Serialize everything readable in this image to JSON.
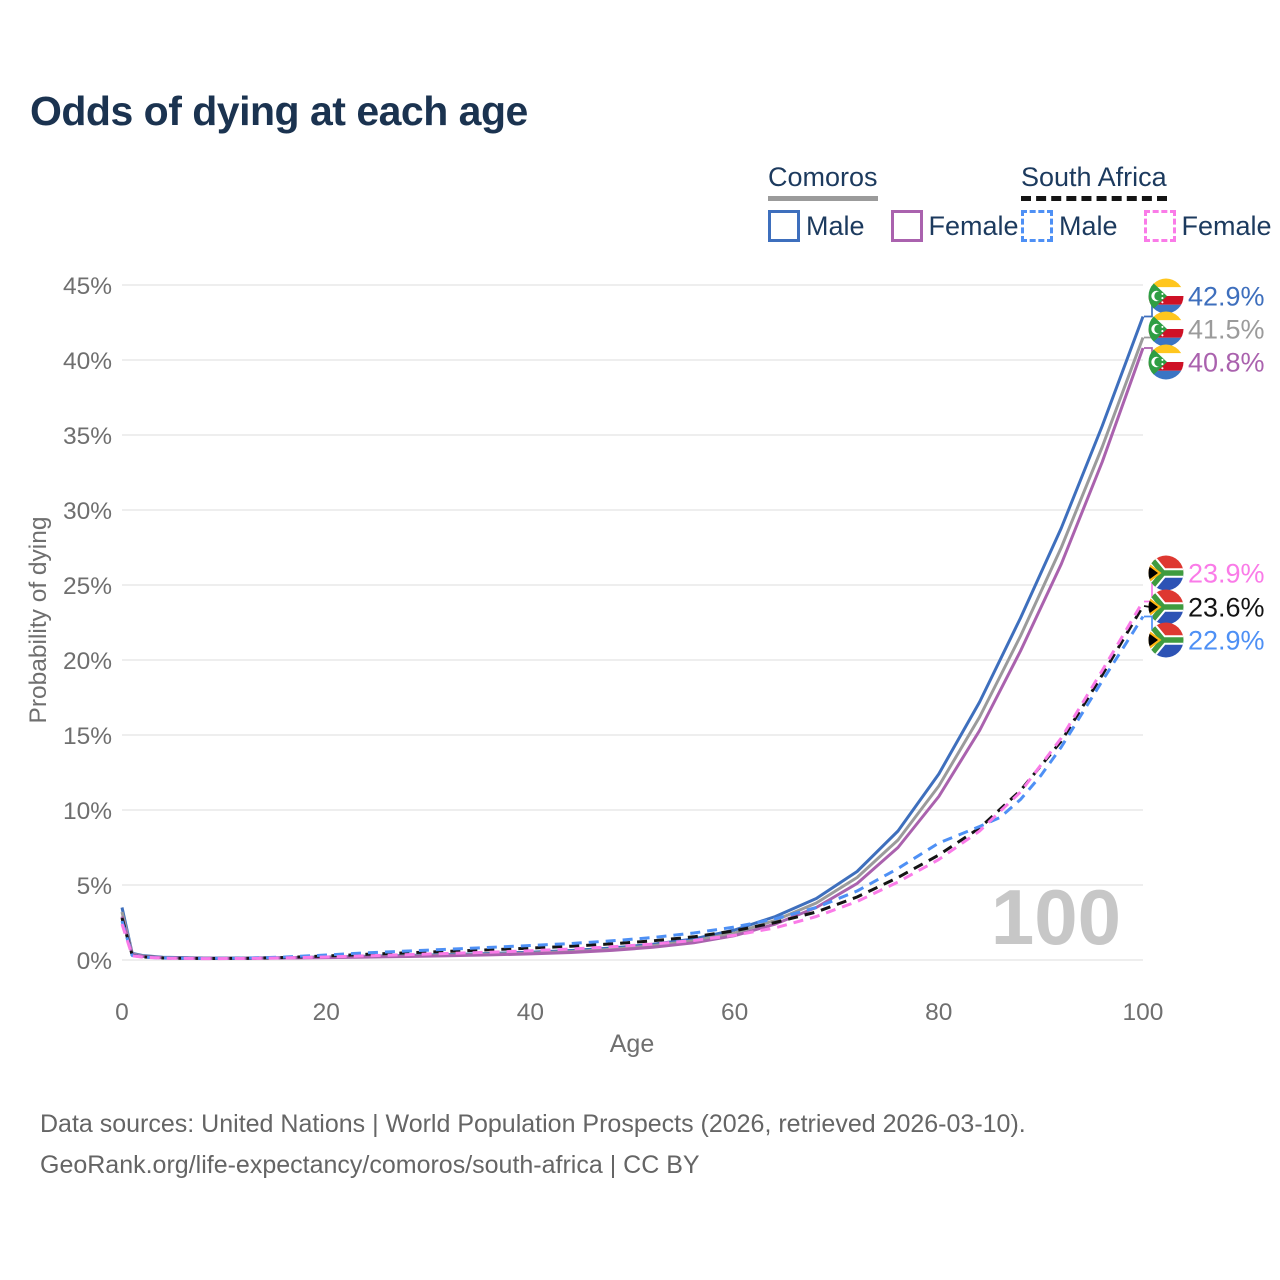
{
  "title": "Odds of dying at each age",
  "legend": {
    "groups": [
      {
        "name": "Comoros",
        "line_style": "solid",
        "line_color": "#9b9b9b",
        "items": [
          {
            "label": "Male",
            "color": "#3E6FBD",
            "dashed": false
          },
          {
            "label": "Female",
            "color": "#AA62AE",
            "dashed": false
          }
        ]
      },
      {
        "name": "South Africa",
        "line_style": "dashed",
        "line_color": "#141414",
        "items": [
          {
            "label": "Male",
            "color": "#4E90F5",
            "dashed": true
          },
          {
            "label": "Female",
            "color": "#FA7BE8",
            "dashed": true
          }
        ]
      }
    ]
  },
  "chart_data": {
    "type": "line",
    "title": "Odds of dying at each age",
    "xlabel": "Age",
    "ylabel": "Probability of dying",
    "xlim": [
      0,
      100
    ],
    "ylim": [
      0,
      45
    ],
    "x_ticks": [
      0,
      20,
      40,
      60,
      80,
      100
    ],
    "y_ticks": [
      0,
      5,
      10,
      15,
      20,
      25,
      30,
      35,
      40,
      45
    ],
    "y_tick_suffix": "%",
    "grid": true,
    "watermark": "100",
    "legend_position": "top-right",
    "series": [
      {
        "name": "Comoros Male",
        "country": "Comoros",
        "sex": "Male",
        "color": "#3E6FBD",
        "dashed": false,
        "end_label": "42.9%",
        "points": [
          [
            0,
            3.5
          ],
          [
            1,
            0.45
          ],
          [
            2,
            0.3
          ],
          [
            4,
            0.18
          ],
          [
            8,
            0.13
          ],
          [
            12,
            0.13
          ],
          [
            16,
            0.16
          ],
          [
            20,
            0.2
          ],
          [
            24,
            0.25
          ],
          [
            28,
            0.3
          ],
          [
            32,
            0.36
          ],
          [
            36,
            0.43
          ],
          [
            40,
            0.52
          ],
          [
            44,
            0.63
          ],
          [
            48,
            0.8
          ],
          [
            52,
            1.05
          ],
          [
            56,
            1.4
          ],
          [
            60,
            2.0
          ],
          [
            64,
            2.9
          ],
          [
            68,
            4.1
          ],
          [
            72,
            5.9
          ],
          [
            76,
            8.6
          ],
          [
            80,
            12.4
          ],
          [
            84,
            17.2
          ],
          [
            88,
            22.8
          ],
          [
            92,
            28.8
          ],
          [
            96,
            35.6
          ],
          [
            100,
            42.9
          ]
        ]
      },
      {
        "name": "Comoros Both sexes",
        "country": "Comoros",
        "sex": "All",
        "color": "#9B9B9B",
        "dashed": false,
        "end_label": "41.5%",
        "points": [
          [
            0,
            3.2
          ],
          [
            1,
            0.4
          ],
          [
            2,
            0.27
          ],
          [
            4,
            0.16
          ],
          [
            8,
            0.12
          ],
          [
            12,
            0.12
          ],
          [
            16,
            0.14
          ],
          [
            20,
            0.18
          ],
          [
            24,
            0.22
          ],
          [
            28,
            0.27
          ],
          [
            32,
            0.32
          ],
          [
            36,
            0.38
          ],
          [
            40,
            0.46
          ],
          [
            44,
            0.56
          ],
          [
            48,
            0.72
          ],
          [
            52,
            0.95
          ],
          [
            56,
            1.28
          ],
          [
            60,
            1.8
          ],
          [
            64,
            2.65
          ],
          [
            68,
            3.8
          ],
          [
            72,
            5.5
          ],
          [
            76,
            8.0
          ],
          [
            80,
            11.6
          ],
          [
            84,
            16.2
          ],
          [
            88,
            21.6
          ],
          [
            92,
            27.5
          ],
          [
            96,
            34.2
          ],
          [
            100,
            41.5
          ]
        ]
      },
      {
        "name": "Comoros Female",
        "country": "Comoros",
        "sex": "Female",
        "color": "#AA62AE",
        "dashed": false,
        "end_label": "40.8%",
        "points": [
          [
            0,
            2.9
          ],
          [
            1,
            0.36
          ],
          [
            2,
            0.24
          ],
          [
            4,
            0.14
          ],
          [
            8,
            0.11
          ],
          [
            12,
            0.11
          ],
          [
            16,
            0.13
          ],
          [
            20,
            0.16
          ],
          [
            24,
            0.19
          ],
          [
            28,
            0.23
          ],
          [
            32,
            0.28
          ],
          [
            36,
            0.34
          ],
          [
            40,
            0.41
          ],
          [
            44,
            0.5
          ],
          [
            48,
            0.64
          ],
          [
            52,
            0.85
          ],
          [
            56,
            1.15
          ],
          [
            60,
            1.62
          ],
          [
            64,
            2.4
          ],
          [
            68,
            3.5
          ],
          [
            72,
            5.1
          ],
          [
            76,
            7.5
          ],
          [
            80,
            10.9
          ],
          [
            84,
            15.3
          ],
          [
            88,
            20.6
          ],
          [
            92,
            26.4
          ],
          [
            96,
            33.2
          ],
          [
            100,
            40.8
          ]
        ]
      },
      {
        "name": "South Africa Both sexes",
        "country": "South Africa",
        "sex": "All",
        "color": "#141414",
        "dashed": true,
        "end_label": "23.6%",
        "points": [
          [
            0,
            2.8
          ],
          [
            1,
            0.32
          ],
          [
            2,
            0.21
          ],
          [
            4,
            0.13
          ],
          [
            8,
            0.1
          ],
          [
            12,
            0.11
          ],
          [
            16,
            0.17
          ],
          [
            20,
            0.27
          ],
          [
            24,
            0.38
          ],
          [
            28,
            0.48
          ],
          [
            32,
            0.58
          ],
          [
            36,
            0.68
          ],
          [
            40,
            0.79
          ],
          [
            44,
            0.92
          ],
          [
            48,
            1.08
          ],
          [
            52,
            1.28
          ],
          [
            56,
            1.55
          ],
          [
            60,
            1.95
          ],
          [
            64,
            2.5
          ],
          [
            68,
            3.2
          ],
          [
            72,
            4.2
          ],
          [
            76,
            5.5
          ],
          [
            80,
            7.0
          ],
          [
            84,
            8.8
          ],
          [
            88,
            11.3
          ],
          [
            92,
            14.6
          ],
          [
            96,
            19.0
          ],
          [
            100,
            23.6
          ]
        ]
      },
      {
        "name": "South Africa Male",
        "country": "South Africa",
        "sex": "Male",
        "color": "#4E90F5",
        "dashed": true,
        "end_label": "22.9%",
        "points": [
          [
            0,
            2.6
          ],
          [
            1,
            0.3
          ],
          [
            2,
            0.2
          ],
          [
            4,
            0.13
          ],
          [
            8,
            0.1
          ],
          [
            12,
            0.12
          ],
          [
            16,
            0.2
          ],
          [
            20,
            0.33
          ],
          [
            24,
            0.48
          ],
          [
            28,
            0.6
          ],
          [
            32,
            0.72
          ],
          [
            36,
            0.84
          ],
          [
            40,
            0.97
          ],
          [
            44,
            1.1
          ],
          [
            48,
            1.28
          ],
          [
            52,
            1.5
          ],
          [
            56,
            1.8
          ],
          [
            60,
            2.2
          ],
          [
            64,
            2.75
          ],
          [
            68,
            3.5
          ],
          [
            72,
            4.6
          ],
          [
            76,
            6.1
          ],
          [
            80,
            7.8
          ],
          [
            84,
            8.9
          ],
          [
            86,
            9.5
          ],
          [
            88,
            10.7
          ],
          [
            90,
            12.3
          ],
          [
            92,
            14.2
          ],
          [
            96,
            18.6
          ],
          [
            100,
            22.9
          ]
        ]
      },
      {
        "name": "South Africa Female",
        "country": "South Africa",
        "sex": "Female",
        "color": "#FA7BE8",
        "dashed": true,
        "end_label": "23.9%",
        "points": [
          [
            0,
            2.4
          ],
          [
            1,
            0.28
          ],
          [
            2,
            0.19
          ],
          [
            4,
            0.12
          ],
          [
            8,
            0.09
          ],
          [
            12,
            0.1
          ],
          [
            16,
            0.14
          ],
          [
            20,
            0.2
          ],
          [
            24,
            0.28
          ],
          [
            28,
            0.36
          ],
          [
            32,
            0.44
          ],
          [
            36,
            0.52
          ],
          [
            40,
            0.62
          ],
          [
            44,
            0.73
          ],
          [
            48,
            0.88
          ],
          [
            52,
            1.06
          ],
          [
            56,
            1.3
          ],
          [
            60,
            1.65
          ],
          [
            64,
            2.15
          ],
          [
            68,
            2.9
          ],
          [
            72,
            3.9
          ],
          [
            76,
            5.2
          ],
          [
            80,
            6.7
          ],
          [
            84,
            8.6
          ],
          [
            88,
            11.2
          ],
          [
            92,
            14.8
          ],
          [
            96,
            19.3
          ],
          [
            100,
            23.9
          ]
        ]
      }
    ]
  },
  "footer": {
    "line1": "Data sources: United Nations | World Population Prospects (2026, retrieved 2026-03-10).",
    "line2": "GeoRank.org/life-expectancy/comoros/south-africa | CC BY"
  },
  "colors": {
    "title_text": "#1b3350",
    "axis_text": "#6f6f6f",
    "gridline": "#e9e9e9",
    "watermark": "#c7c7c7",
    "footer_text": "#656565"
  }
}
